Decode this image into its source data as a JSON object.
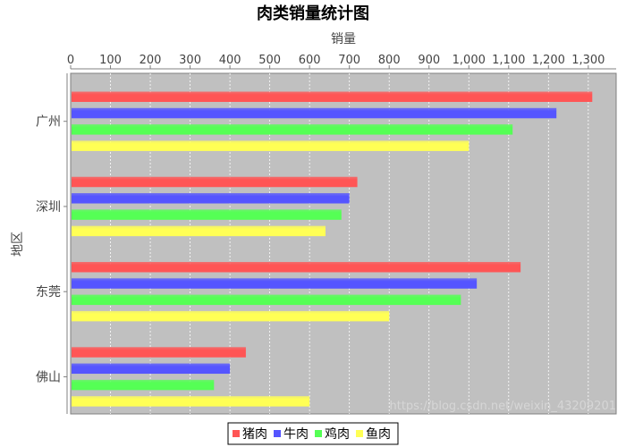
{
  "chart_data": {
    "type": "bar",
    "orientation": "horizontal",
    "title": "肉类销量统计图",
    "xlabel": "销量",
    "ylabel": "地区",
    "xlim": [
      0,
      1370
    ],
    "ticks": [
      0,
      100,
      200,
      300,
      400,
      500,
      600,
      700,
      800,
      900,
      1000,
      1100,
      1200,
      1300
    ],
    "tick_labels": [
      "0",
      "100",
      "200",
      "300",
      "400",
      "500",
      "600",
      "700",
      "800",
      "900",
      "1,000",
      "1,100",
      "1,200",
      "1,300"
    ],
    "categories": [
      "广州",
      "深圳",
      "东莞",
      "佛山"
    ],
    "series": [
      {
        "name": "猪肉",
        "color": "#ff5555",
        "values": [
          1310,
          720,
          1130,
          440
        ]
      },
      {
        "name": "牛肉",
        "color": "#5555ff",
        "values": [
          1220,
          700,
          1020,
          400
        ]
      },
      {
        "name": "鸡肉",
        "color": "#55ff55",
        "values": [
          1110,
          680,
          980,
          360
        ]
      },
      {
        "name": "鱼肉",
        "color": "#ffff55",
        "values": [
          1000,
          640,
          800,
          600
        ]
      }
    ],
    "grid": true,
    "plot_background": "#c0c0c0",
    "legend_position": "bottom"
  },
  "watermark": "https://blog.csdn.net/weixin_43209201"
}
